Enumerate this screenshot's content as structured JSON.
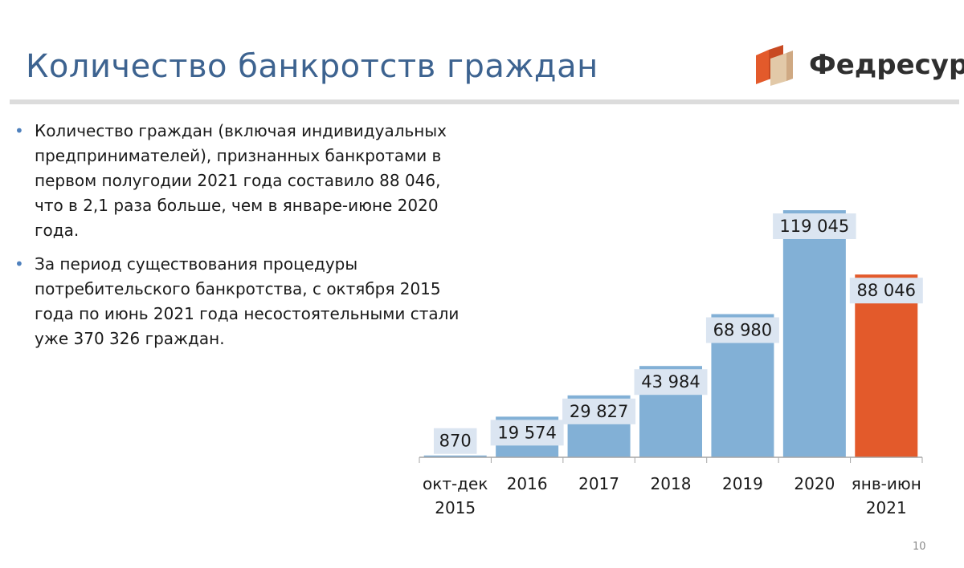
{
  "title": "Количество банкротств граждан",
  "logo": {
    "text": "Федресурс",
    "icon": "fedresurs-logo-icon"
  },
  "bullets": [
    "Количество граждан (включая индивидуальных предпринимателей), признанных банкротами в первом полугодии 2021 года составило 88 046, что в 2,1 раза больше, чем в январе-июне 2020 года.",
    "За период существования процедуры потребительского банкротства, с октября 2015 года по июнь 2021 года несостоятельными стали уже 370 326 граждан."
  ],
  "page_number": "10",
  "chart_data": {
    "type": "bar",
    "categories": [
      [
        "окт-дек",
        "2015"
      ],
      [
        "2016"
      ],
      [
        "2017"
      ],
      [
        "2018"
      ],
      [
        "2019"
      ],
      [
        "2020"
      ],
      [
        "янв-июн",
        "2021"
      ]
    ],
    "values": [
      870,
      19574,
      29827,
      43984,
      68980,
      119045,
      88046
    ],
    "labels": [
      "870",
      "19 574",
      "29 827",
      "43 984",
      "68 980",
      "119 045",
      "88 046"
    ],
    "highlight_index": 6,
    "colors": {
      "bar": "#82b0d6",
      "highlight": "#e35a2b",
      "label_bg": "#dbe5f1",
      "axis": "#a6a6a6"
    },
    "ylim": [
      0,
      119045
    ],
    "grid": false,
    "legend": "none"
  }
}
